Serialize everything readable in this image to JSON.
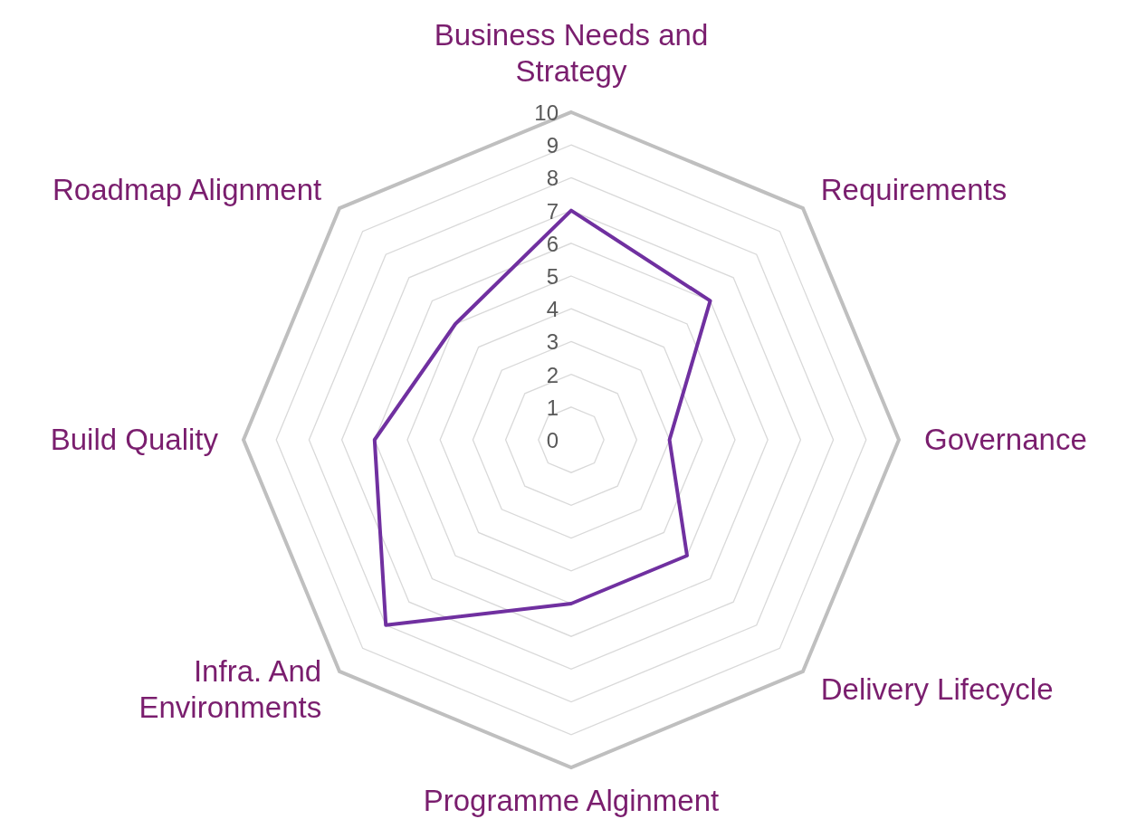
{
  "chart_data": {
    "type": "radar",
    "categories": [
      "Business Needs and Strategy",
      "Requirements",
      "Governance",
      "Delivery Lifecycle",
      "Programme Alginment",
      "Infra. And Environments",
      "Build Quality",
      "Roadmap Alignment"
    ],
    "series": [
      {
        "color": "#7030a0",
        "values": [
          7,
          6,
          3,
          5,
          5,
          8,
          6,
          5
        ]
      }
    ],
    "ylim": [
      0,
      10
    ],
    "yticks": [
      0,
      1,
      2,
      3,
      4,
      5,
      6,
      7,
      8,
      9,
      10
    ],
    "grid": true
  }
}
